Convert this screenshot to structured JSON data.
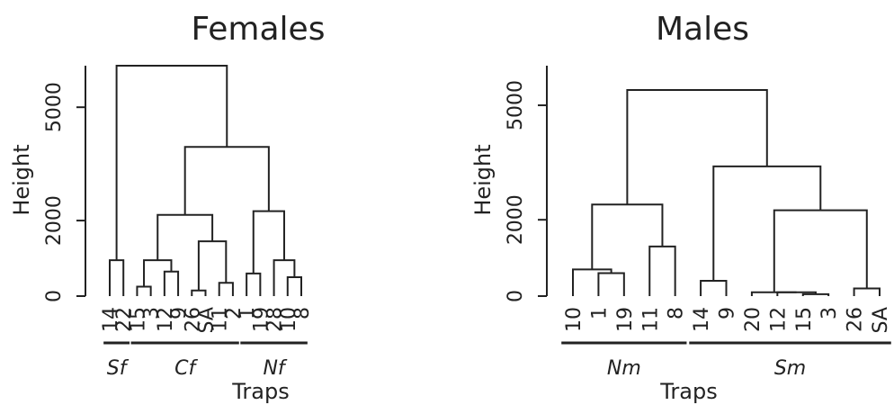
{
  "chart_data": [
    {
      "type": "dendrogram",
      "title": "Females",
      "xlabel": "Traps",
      "ylabel": "Height",
      "yticks": [
        0,
        2000,
        5000
      ],
      "ylim": [
        0,
        6000
      ],
      "leaves": [
        "14",
        "22",
        "15",
        "3",
        "12",
        "9",
        "26",
        "SA",
        "11",
        "2",
        "1",
        "19",
        "28",
        "10",
        "8"
      ],
      "merges": [
        {
          "a": "L:14",
          "b": "L:22",
          "height": 950
        },
        {
          "a": "L:15",
          "b": "L:3",
          "height": 250
        },
        {
          "a": "L:12",
          "b": "L:9",
          "height": 650
        },
        {
          "a": "M:1",
          "b": "M:2",
          "height": 950
        },
        {
          "a": "L:26",
          "b": "L:SA",
          "height": 150
        },
        {
          "a": "L:11",
          "b": "L:2",
          "height": 350
        },
        {
          "a": "M:4",
          "b": "M:5",
          "height": 1450
        },
        {
          "a": "M:3",
          "b": "M:6",
          "height": 2150
        },
        {
          "a": "L:1",
          "b": "L:19",
          "height": 600
        },
        {
          "a": "L:10",
          "b": "L:8",
          "height": 500
        },
        {
          "a": "L:28",
          "b": "M:9",
          "height": 950
        },
        {
          "a": "M:8",
          "b": "M:10",
          "height": 2250
        },
        {
          "a": "M:7",
          "b": "M:11",
          "height": 3950
        },
        {
          "a": "M:0",
          "b": "M:12",
          "height": 6100
        }
      ],
      "groups": [
        {
          "label": "Sf",
          "from": 0,
          "to": 1
        },
        {
          "label": "Cf",
          "from": 2,
          "to": 9
        },
        {
          "label": "Nf",
          "from": 10,
          "to": 14
        }
      ]
    },
    {
      "type": "dendrogram",
      "title": "Males",
      "xlabel": "Traps",
      "ylabel": "Height",
      "yticks": [
        0,
        2000,
        5000
      ],
      "ylim": [
        0,
        5600
      ],
      "leaves": [
        "10",
        "1",
        "19",
        "11",
        "8",
        "14",
        "9",
        "20",
        "12",
        "15",
        "3",
        "26",
        "SA"
      ],
      "merges": [
        {
          "a": "L:1",
          "b": "L:19",
          "height": 600
        },
        {
          "a": "L:10",
          "b": "M:0",
          "height": 700
        },
        {
          "a": "L:11",
          "b": "L:8",
          "height": 1300
        },
        {
          "a": "M:1",
          "b": "M:2",
          "height": 2400
        },
        {
          "a": "L:14",
          "b": "L:9",
          "height": 400
        },
        {
          "a": "L:15",
          "b": "L:3",
          "height": 50
        },
        {
          "a": "L:12",
          "b": "M:5",
          "height": 100
        },
        {
          "a": "L:20",
          "b": "M:6",
          "height": 100
        },
        {
          "a": "L:26",
          "b": "L:SA",
          "height": 200
        },
        {
          "a": "M:7",
          "b": "M:8",
          "height": 2250
        },
        {
          "a": "M:4",
          "b": "M:9",
          "height": 3400
        },
        {
          "a": "M:3",
          "b": "M:10",
          "height": 5400
        }
      ],
      "groups": [
        {
          "label": "Nm",
          "from": 0,
          "to": 4
        },
        {
          "label": "Sm",
          "from": 5,
          "to": 12
        }
      ]
    }
  ]
}
